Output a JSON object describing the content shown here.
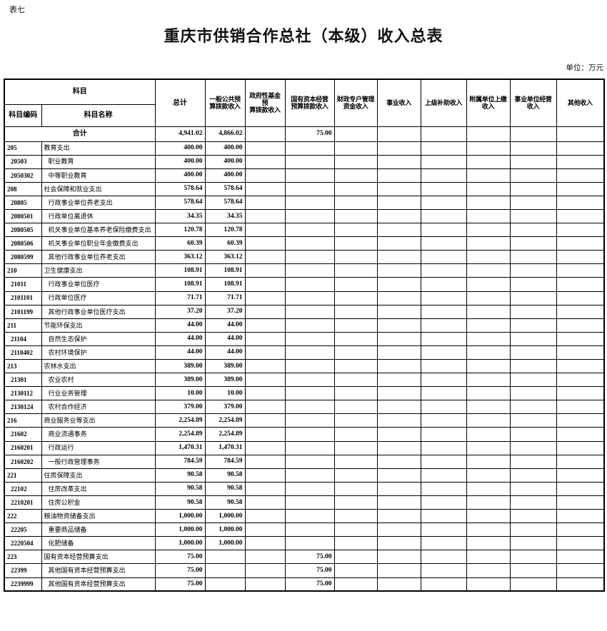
{
  "page": {
    "table_label": "表七",
    "title": "重庆市供销合作总社（本级）收入总表",
    "unit_note": "单位：万元"
  },
  "table": {
    "header": {
      "subject": "科目",
      "subject_code": "科目编码",
      "subject_name": "科目名称",
      "columns": [
        "总计",
        "一般公共预\n算拨款收入",
        "政府性基金预\n算拨款收入",
        "国有资本经营\n预算拨款收入",
        "财政专户管理\n资金收入",
        "事业收入",
        "上级补助收入",
        "附属单位上缴\n收入",
        "事业单位经营\n收入",
        "其他收入"
      ]
    },
    "total_row": {
      "label": "合计",
      "values": [
        "4,941.02",
        "4,866.02",
        "",
        "75.00",
        "",
        "",
        "",
        "",
        "",
        ""
      ]
    },
    "rows": [
      {
        "code": "205",
        "name": "教育支出",
        "level": 1,
        "values": [
          "400.00",
          "400.00",
          "",
          "",
          "",
          "",
          "",
          "",
          "",
          ""
        ]
      },
      {
        "code": "20503",
        "name": "职业教育",
        "level": 2,
        "values": [
          "400.00",
          "400.00",
          "",
          "",
          "",
          "",
          "",
          "",
          "",
          ""
        ]
      },
      {
        "code": "2050302",
        "name": "中等职业教育",
        "level": 3,
        "values": [
          "400.00",
          "400.00",
          "",
          "",
          "",
          "",
          "",
          "",
          "",
          ""
        ]
      },
      {
        "code": "208",
        "name": "社会保障和就业支出",
        "level": 1,
        "values": [
          "578.64",
          "578.64",
          "",
          "",
          "",
          "",
          "",
          "",
          "",
          ""
        ]
      },
      {
        "code": "20805",
        "name": "行政事业单位养老支出",
        "level": 2,
        "values": [
          "578.64",
          "578.64",
          "",
          "",
          "",
          "",
          "",
          "",
          "",
          ""
        ]
      },
      {
        "code": "2080501",
        "name": "行政单位离退休",
        "level": 3,
        "values": [
          "34.35",
          "34.35",
          "",
          "",
          "",
          "",
          "",
          "",
          "",
          ""
        ]
      },
      {
        "code": "2080505",
        "name": "机关事业单位基本养老保险缴费支出",
        "level": 3,
        "values": [
          "120.78",
          "120.78",
          "",
          "",
          "",
          "",
          "",
          "",
          "",
          ""
        ]
      },
      {
        "code": "2080506",
        "name": "机关事业单位职业年金缴费支出",
        "level": 3,
        "values": [
          "60.39",
          "60.39",
          "",
          "",
          "",
          "",
          "",
          "",
          "",
          ""
        ]
      },
      {
        "code": "2080599",
        "name": "其他行政事业单位养老支出",
        "level": 3,
        "values": [
          "363.12",
          "363.12",
          "",
          "",
          "",
          "",
          "",
          "",
          "",
          ""
        ]
      },
      {
        "code": "210",
        "name": "卫生健康支出",
        "level": 1,
        "values": [
          "108.91",
          "108.91",
          "",
          "",
          "",
          "",
          "",
          "",
          "",
          ""
        ]
      },
      {
        "code": "21011",
        "name": "行政事业单位医疗",
        "level": 2,
        "values": [
          "108.91",
          "108.91",
          "",
          "",
          "",
          "",
          "",
          "",
          "",
          ""
        ]
      },
      {
        "code": "2101101",
        "name": "行政单位医疗",
        "level": 3,
        "values": [
          "71.71",
          "71.71",
          "",
          "",
          "",
          "",
          "",
          "",
          "",
          ""
        ]
      },
      {
        "code": "2101199",
        "name": "其他行政事业单位医疗支出",
        "level": 3,
        "values": [
          "37.20",
          "37.20",
          "",
          "",
          "",
          "",
          "",
          "",
          "",
          ""
        ]
      },
      {
        "code": "211",
        "name": "节能环保支出",
        "level": 1,
        "values": [
          "44.00",
          "44.00",
          "",
          "",
          "",
          "",
          "",
          "",
          "",
          ""
        ]
      },
      {
        "code": "21104",
        "name": "自然生态保护",
        "level": 2,
        "values": [
          "44.00",
          "44.00",
          "",
          "",
          "",
          "",
          "",
          "",
          "",
          ""
        ]
      },
      {
        "code": "2110402",
        "name": "农村环境保护",
        "level": 3,
        "values": [
          "44.00",
          "44.00",
          "",
          "",
          "",
          "",
          "",
          "",
          "",
          ""
        ]
      },
      {
        "code": "213",
        "name": "农林水支出",
        "level": 1,
        "values": [
          "389.00",
          "389.00",
          "",
          "",
          "",
          "",
          "",
          "",
          "",
          ""
        ]
      },
      {
        "code": "21301",
        "name": "农业农村",
        "level": 2,
        "values": [
          "389.00",
          "389.00",
          "",
          "",
          "",
          "",
          "",
          "",
          "",
          ""
        ]
      },
      {
        "code": "2130112",
        "name": "行业业务管理",
        "level": 3,
        "values": [
          "10.00",
          "10.00",
          "",
          "",
          "",
          "",
          "",
          "",
          "",
          ""
        ]
      },
      {
        "code": "2130124",
        "name": "农村合作经济",
        "level": 3,
        "values": [
          "379.00",
          "379.00",
          "",
          "",
          "",
          "",
          "",
          "",
          "",
          ""
        ]
      },
      {
        "code": "216",
        "name": "商业服务业等支出",
        "level": 1,
        "values": [
          "2,254.89",
          "2,254.89",
          "",
          "",
          "",
          "",
          "",
          "",
          "",
          ""
        ]
      },
      {
        "code": "21602",
        "name": "商业流通事务",
        "level": 2,
        "values": [
          "2,254.89",
          "2,254.89",
          "",
          "",
          "",
          "",
          "",
          "",
          "",
          ""
        ]
      },
      {
        "code": "2160201",
        "name": "行政运行",
        "level": 3,
        "values": [
          "1,470.31",
          "1,470.31",
          "",
          "",
          "",
          "",
          "",
          "",
          "",
          ""
        ]
      },
      {
        "code": "2160202",
        "name": "一般行政管理事务",
        "level": 3,
        "values": [
          "784.59",
          "784.59",
          "",
          "",
          "",
          "",
          "",
          "",
          "",
          ""
        ]
      },
      {
        "code": "221",
        "name": "住房保障支出",
        "level": 1,
        "values": [
          "90.58",
          "90.58",
          "",
          "",
          "",
          "",
          "",
          "",
          "",
          ""
        ]
      },
      {
        "code": "22102",
        "name": "住房改革支出",
        "level": 2,
        "values": [
          "90.58",
          "90.58",
          "",
          "",
          "",
          "",
          "",
          "",
          "",
          ""
        ]
      },
      {
        "code": "2210201",
        "name": "住房公积金",
        "level": 3,
        "values": [
          "90.58",
          "90.58",
          "",
          "",
          "",
          "",
          "",
          "",
          "",
          ""
        ]
      },
      {
        "code": "222",
        "name": "粮油物资储备支出",
        "level": 1,
        "values": [
          "1,000.00",
          "1,000.00",
          "",
          "",
          "",
          "",
          "",
          "",
          "",
          ""
        ]
      },
      {
        "code": "22205",
        "name": "重要商品储备",
        "level": 2,
        "values": [
          "1,000.00",
          "1,000.00",
          "",
          "",
          "",
          "",
          "",
          "",
          "",
          ""
        ]
      },
      {
        "code": "2220504",
        "name": "化肥储备",
        "level": 3,
        "values": [
          "1,000.00",
          "1,000.00",
          "",
          "",
          "",
          "",
          "",
          "",
          "",
          ""
        ]
      },
      {
        "code": "223",
        "name": "国有资本经营预算支出",
        "level": 1,
        "values": [
          "75.00",
          "",
          "",
          "75.00",
          "",
          "",
          "",
          "",
          "",
          ""
        ]
      },
      {
        "code": "22399",
        "name": "其他国有资本经营预算支出",
        "level": 2,
        "values": [
          "75.00",
          "",
          "",
          "75.00",
          "",
          "",
          "",
          "",
          "",
          ""
        ]
      },
      {
        "code": "2239999",
        "name": "其他国有资本经营预算支出",
        "level": 3,
        "values": [
          "75.00",
          "",
          "",
          "75.00",
          "",
          "",
          "",
          "",
          "",
          ""
        ]
      }
    ]
  }
}
